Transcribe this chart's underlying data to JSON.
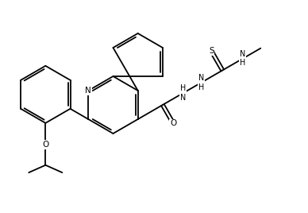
{
  "fig_width": 3.88,
  "fig_height": 2.68,
  "dpi": 100,
  "bg_color": "#ffffff",
  "bond_color": "#000000",
  "lw": 1.3,
  "fs": 7.5,
  "xlim": [
    0,
    7.76
  ],
  "ylim": [
    0,
    5.36
  ]
}
